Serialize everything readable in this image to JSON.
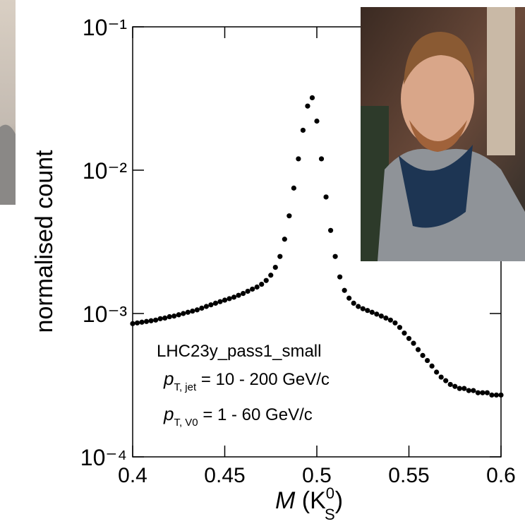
{
  "chart_data": {
    "type": "scatter",
    "ylabel": "normalised count",
    "xlabel": [
      "M",
      " (K",
      "0",
      "S",
      ")"
    ],
    "annotations": [
      [
        "LHC23y_pass1_small"
      ],
      [
        "p",
        "T, jet",
        " = 10 - 200 GeV/c"
      ],
      [
        "p",
        "T, V0",
        " = 1 - 60 GeV/c"
      ]
    ],
    "xlim": [
      0.4,
      0.6
    ],
    "xticks": [
      0.4,
      0.45,
      0.5,
      0.55,
      0.6
    ],
    "ylim": [
      0.0001,
      0.1
    ],
    "log_y": true,
    "yticks": [
      {
        "value": 0.0001,
        "label": "10⁻⁴"
      },
      {
        "value": 0.001,
        "label": "10⁻³"
      },
      {
        "value": 0.01,
        "label": "10⁻²"
      },
      {
        "value": 0.1,
        "label": "10⁻¹"
      }
    ],
    "color": "#000000",
    "x": [
      0.4,
      0.4025,
      0.405,
      0.4075,
      0.41,
      0.4125,
      0.415,
      0.4175,
      0.42,
      0.4225,
      0.425,
      0.4275,
      0.43,
      0.4325,
      0.435,
      0.4375,
      0.44,
      0.4425,
      0.445,
      0.4475,
      0.45,
      0.4525,
      0.455,
      0.4575,
      0.46,
      0.4625,
      0.465,
      0.4675,
      0.47,
      0.4725,
      0.475,
      0.4775,
      0.48,
      0.4825,
      0.485,
      0.4875,
      0.49,
      0.4925,
      0.495,
      0.4975,
      0.5,
      0.5025,
      0.505,
      0.5075,
      0.51,
      0.5125,
      0.515,
      0.5175,
      0.52,
      0.5225,
      0.525,
      0.5275,
      0.53,
      0.5325,
      0.535,
      0.5375,
      0.54,
      0.5425,
      0.545,
      0.5475,
      0.55,
      0.5525,
      0.555,
      0.5575,
      0.56,
      0.5625,
      0.565,
      0.5675,
      0.57,
      0.5725,
      0.575,
      0.5775,
      0.58,
      0.5825,
      0.585,
      0.5875,
      0.59,
      0.5925,
      0.595,
      0.5975,
      0.6
    ],
    "values": [
      0.00085,
      0.00086,
      0.00087,
      0.00088,
      0.00089,
      0.0009,
      0.00092,
      0.00093,
      0.00095,
      0.00096,
      0.00098,
      0.001,
      0.00102,
      0.00104,
      0.00106,
      0.00109,
      0.00112,
      0.00115,
      0.00118,
      0.00121,
      0.00124,
      0.00127,
      0.0013,
      0.00134,
      0.00138,
      0.00143,
      0.00148,
      0.00153,
      0.0016,
      0.0017,
      0.00185,
      0.0021,
      0.0025,
      0.0033,
      0.0048,
      0.0075,
      0.012,
      0.019,
      0.028,
      0.032,
      0.022,
      0.012,
      0.0065,
      0.0038,
      0.0025,
      0.0018,
      0.00145,
      0.00128,
      0.00118,
      0.00112,
      0.00108,
      0.00105,
      0.00102,
      0.00099,
      0.00096,
      0.00093,
      0.0009,
      0.00086,
      0.0008,
      0.00073,
      0.00067,
      0.00062,
      0.00056,
      0.00051,
      0.00047,
      0.00043,
      0.00039,
      0.00036,
      0.00034,
      0.00032,
      0.00031,
      0.0003,
      0.0003,
      0.00029,
      0.00029,
      0.00028,
      0.00028,
      0.00028,
      0.00027,
      0.00027,
      0.00027
    ]
  }
}
